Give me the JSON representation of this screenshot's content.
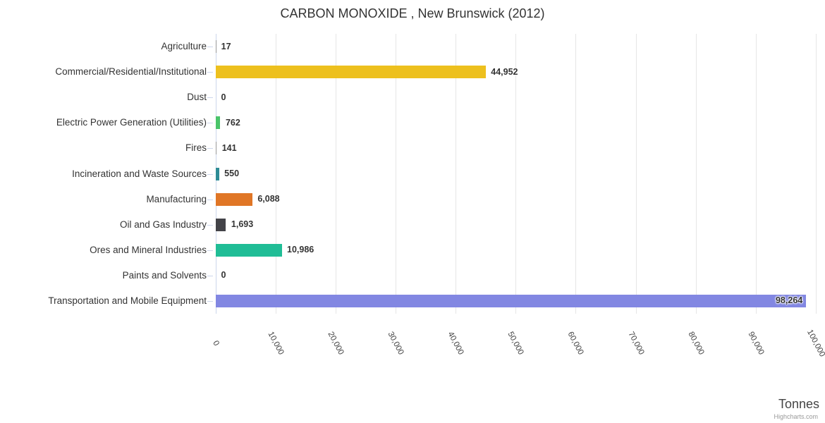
{
  "chart_data": {
    "type": "bar",
    "orientation": "horizontal",
    "title": "CARBON MONOXIDE , New Brunswick (2012)",
    "xlabel": "Tonnes",
    "ylabel": "",
    "xlim": [
      0,
      100000
    ],
    "grid": true,
    "legend_position": "none",
    "categories": [
      "Agriculture",
      "Commercial/Residential/Institutional",
      "Dust",
      "Electric Power Generation (Utilities)",
      "Fires",
      "Incineration and Waste Sources",
      "Manufacturing",
      "Oil and Gas Industry",
      "Ores and Mineral Industries",
      "Paints and Solvents",
      "Transportation and Mobile Equipment"
    ],
    "values": [
      17,
      44952,
      0,
      762,
      141,
      550,
      6088,
      1693,
      10986,
      0,
      98264
    ],
    "value_labels": [
      "17",
      "44,952",
      "0",
      "762",
      "141",
      "550",
      "6,088",
      "1,693",
      "10,986",
      "0",
      "98,264"
    ],
    "bar_colors": [
      "#999999",
      "#EDC01E",
      "#999999",
      "#4AC46A",
      "#999999",
      "#2E8C96",
      "#E07626",
      "#434348",
      "#20BD96",
      "#999999",
      "#8287E2"
    ],
    "x_ticks": [
      0,
      10000,
      20000,
      30000,
      40000,
      50000,
      60000,
      70000,
      80000,
      90000,
      100000
    ],
    "x_tick_labels": [
      "0",
      "10,000",
      "20,000",
      "30,000",
      "40,000",
      "50,000",
      "60,000",
      "70,000",
      "80,000",
      "90,000",
      "100,000"
    ]
  },
  "credits": {
    "label": "Highcharts.com"
  },
  "colors": {
    "background": "#ffffff",
    "grid": "#e6e6e6",
    "axis": "#ccd6eb",
    "title_text": "#333333",
    "category_text": "#333333",
    "value_text": "#333333",
    "tick_text": "#444444",
    "axis_title_text": "#444444",
    "credits_text": "#999999"
  }
}
